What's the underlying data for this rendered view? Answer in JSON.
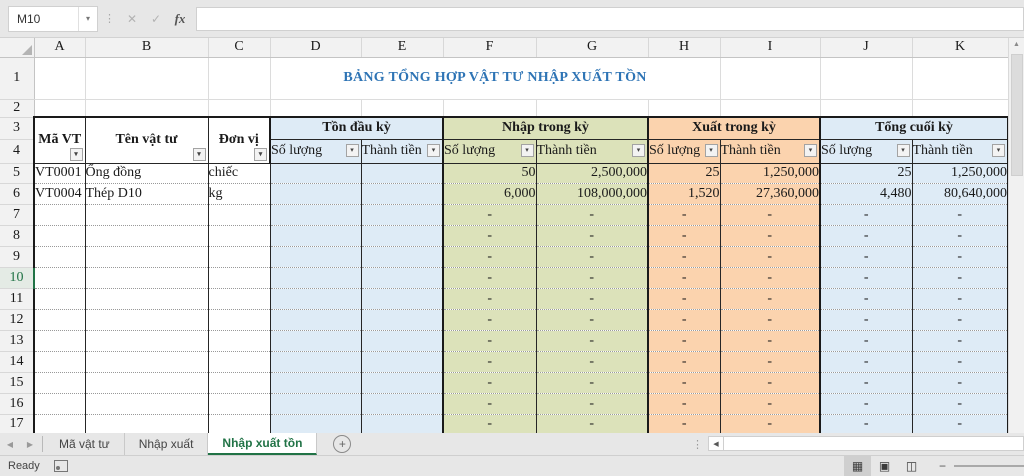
{
  "app": {
    "name_box": "M10",
    "formula_value": ""
  },
  "icons": {
    "dropdown": "▾",
    "cancel": "✕",
    "enter": "✓",
    "fx": "fx",
    "nav_left": "◀",
    "nav_right": "▶",
    "add": "+",
    "scroll_left": "◀",
    "scroll_up": "▲",
    "minus": "−",
    "more": "⋮",
    "view_normal": "▦",
    "view_layout": "▣",
    "view_break": "◫"
  },
  "grid": {
    "column_letters": [
      "A",
      "B",
      "C",
      "D",
      "E",
      "F",
      "G",
      "H",
      "I",
      "J",
      "K"
    ],
    "row_numbers": [
      1,
      2,
      3,
      4,
      5,
      6,
      7,
      8,
      9,
      10,
      11,
      12,
      13,
      14,
      15,
      16,
      17
    ],
    "active_cell_row": 10,
    "title": "BẢNG TỔNG HỢP VẬT TƯ NHẬP XUẤT TỒN",
    "headers": {
      "code": "Mã VT",
      "name": "Tên vật tư",
      "unit": "Đơn vị",
      "groups": [
        "Tồn đầu kỳ",
        "Nhập trong kỳ",
        "Xuất trong kỳ",
        "Tổng cuối kỳ"
      ],
      "quantity": "Số lượng",
      "amount": "Thành tiền"
    },
    "data_rows": [
      {
        "code": "VT0001",
        "name": "Ống đồng",
        "unit": "chiếc",
        "opening_qty": "",
        "opening_amt": "",
        "in_qty": "50",
        "in_amt": "2,500,000",
        "out_qty": "25",
        "out_amt": "1,250,000",
        "end_qty": "25",
        "end_amt": "1,250,000"
      },
      {
        "code": "VT0004",
        "name": "Thép D10",
        "unit": "kg",
        "opening_qty": "",
        "opening_amt": "",
        "in_qty": "6,000",
        "in_amt": "108,000,000",
        "out_qty": "1,520",
        "out_amt": "27,360,000",
        "end_qty": "4,480",
        "end_amt": "80,640,000"
      }
    ],
    "empty_row_count": 11,
    "empty_value": "-"
  },
  "colors": {
    "title_text": "#2E74B5",
    "opening_fill": "#DEEBF6",
    "in_fill": "#DCE2BA",
    "out_fill": "#FBD3AE",
    "ending_fill": "#DEEBF6",
    "active_tab_green": "#217346"
  },
  "sheet_tabs": {
    "tabs": [
      {
        "label": "Mã vật tư",
        "active": false
      },
      {
        "label": "Nhập xuất",
        "active": false
      },
      {
        "label": "Nhập xuất tồn",
        "active": true
      }
    ],
    "add_sheet": "+"
  },
  "status_bar": {
    "mode": "Ready"
  }
}
